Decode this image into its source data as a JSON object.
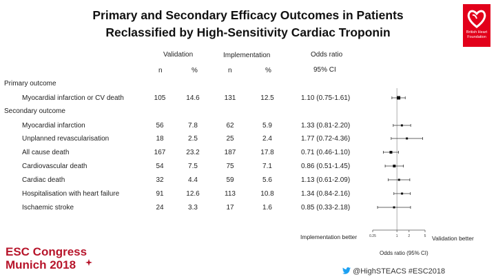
{
  "title": {
    "line1": "Primary and Secondary Efficacy Outcomes in Patients",
    "line2": "Reclassified by High-Sensitivity Cardiac Troponin"
  },
  "table": {
    "group_headers": {
      "validation": "Validation",
      "implementation": "Implementation",
      "odds_ratio": "Odds ratio"
    },
    "sub_headers": {
      "n1": "n",
      "pct1": "%",
      "n2": "n",
      "pct2": "%",
      "ci": "95% CI"
    },
    "sections": {
      "primary": "Primary outcome",
      "secondary": "Secondary outcome"
    },
    "rows": [
      {
        "label": "Myocardial infarction or CV death",
        "v_n": "105",
        "v_pct": "14.6",
        "i_n": "131",
        "i_pct": "12.5",
        "or_text": "1.10 (0.75-1.61)"
      },
      {
        "label": "Myocardial infarction",
        "v_n": "56",
        "v_pct": "7.8",
        "i_n": "62",
        "i_pct": "5.9",
        "or_text": "1.33 (0.81-2.20)"
      },
      {
        "label": "Unplanned revascularisation",
        "v_n": "18",
        "v_pct": "2.5",
        "i_n": "25",
        "i_pct": "2.4",
        "or_text": "1.77 (0.72-4.36)"
      },
      {
        "label": "All cause death",
        "v_n": "167",
        "v_pct": "23.2",
        "i_n": "187",
        "i_pct": "17.8",
        "or_text": "0.71 (0.46-1.10)"
      },
      {
        "label": "Cardiovascular death",
        "v_n": "54",
        "v_pct": "7.5",
        "i_n": "75",
        "i_pct": "7.1",
        "or_text": "0.86 (0.51-1.45)"
      },
      {
        "label": "Cardiac death",
        "v_n": "32",
        "v_pct": "4.4",
        "i_n": "59",
        "i_pct": "5.6",
        "or_text": "1.13 (0.61-2.09)"
      },
      {
        "label": "Hospitalisation with heart failure",
        "v_n": "91",
        "v_pct": "12.6",
        "i_n": "113",
        "i_pct": "10.8",
        "or_text": "1.34 (0.84-2.16)"
      },
      {
        "label": "Ischaemic stroke",
        "v_n": "24",
        "v_pct": "3.3",
        "i_n": "17",
        "i_pct": "1.6",
        "or_text": "0.85 (0.33-2.18)"
      }
    ]
  },
  "chart_data": {
    "type": "forest",
    "scale": "log",
    "xlim": [
      0.25,
      5
    ],
    "ticks": [
      "0.25",
      "1",
      "2",
      "5"
    ],
    "tick_values": [
      0.25,
      1,
      2,
      5
    ],
    "xlabel": "Odds ratio (95% CI)",
    "left_label": "Implementation better",
    "right_label": "Validation better",
    "reference_line": 1,
    "points": [
      {
        "label": "Myocardial infarction or CV death",
        "or": 1.1,
        "lo": 0.75,
        "hi": 1.61
      },
      {
        "label": "Myocardial infarction",
        "or": 1.33,
        "lo": 0.81,
        "hi": 2.2
      },
      {
        "label": "Unplanned revascularisation",
        "or": 1.77,
        "lo": 0.72,
        "hi": 4.36
      },
      {
        "label": "All cause death",
        "or": 0.71,
        "lo": 0.46,
        "hi": 1.1
      },
      {
        "label": "Cardiovascular death",
        "or": 0.86,
        "lo": 0.51,
        "hi": 1.45
      },
      {
        "label": "Cardiac death",
        "or": 1.13,
        "lo": 0.61,
        "hi": 2.09
      },
      {
        "label": "Hospitalisation with heart failure",
        "or": 1.34,
        "lo": 0.84,
        "hi": 2.16
      },
      {
        "label": "Ischaemic stroke",
        "or": 0.85,
        "lo": 0.33,
        "hi": 2.18
      }
    ]
  },
  "logo": {
    "text": "British Heart Foundation",
    "color": "#e2001a"
  },
  "footer": {
    "congress_line1": "ESC Congress",
    "congress_line2": "Munich 2018",
    "congress_color": "#b7152b",
    "twitter": "@HighSTEACS #ESC2018",
    "twitter_icon": "twitter-bird-icon"
  }
}
